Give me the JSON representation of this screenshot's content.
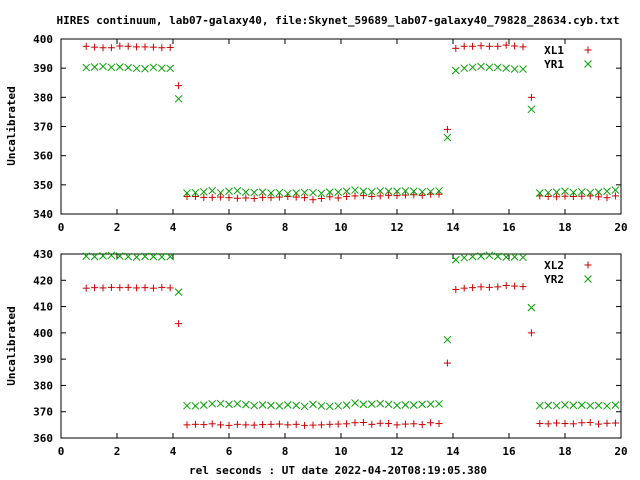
{
  "chart_data": {
    "title": "HIRES continuum, lab07-galaxy40, file:Skynet_59689_lab07-galaxy40_79828_28634.cyb.txt",
    "xlabel": "rel seconds : UT date 2022-04-20T08:19:05.380",
    "colors": {
      "plus": "#cc0000",
      "cross": "#00a000"
    },
    "panels": [
      {
        "type": "scatter",
        "ylabel": "Uncalibrated",
        "xlim": [
          0,
          20
        ],
        "ylim": [
          340,
          400
        ],
        "xticks": [
          "0",
          "2",
          "4",
          "6",
          "8",
          "10",
          "12",
          "14",
          "16",
          "18",
          "20"
        ],
        "yticks": [
          "340",
          "350",
          "360",
          "370",
          "380",
          "390",
          "400"
        ],
        "legend": "top-right",
        "series": [
          {
            "name": "XL1",
            "marker": "plus",
            "x": [
              0.9,
              1.2,
              1.5,
              1.8,
              2.1,
              2.4,
              2.7,
              3.0,
              3.3,
              3.6,
              3.9,
              4.2,
              4.5,
              4.8,
              5.1,
              5.4,
              5.7,
              6.0,
              6.3,
              6.6,
              6.9,
              7.2,
              7.5,
              7.8,
              8.1,
              8.4,
              8.7,
              9.0,
              9.3,
              9.6,
              9.9,
              10.2,
              10.5,
              10.8,
              11.1,
              11.4,
              11.7,
              12.0,
              12.3,
              12.6,
              12.9,
              13.2,
              13.5,
              13.8,
              14.1,
              14.4,
              14.7,
              15.0,
              15.3,
              15.6,
              15.9,
              16.2,
              16.5,
              16.8,
              17.1,
              17.4,
              17.7,
              18.0,
              18.3,
              18.6,
              18.9,
              19.2,
              19.5,
              19.8
            ],
            "y": [
              397.5,
              397.2,
              397.0,
              397.0,
              397.6,
              397.5,
              397.3,
              397.3,
              397.2,
              397.0,
              397.1,
              384.0,
              346.0,
              346.0,
              345.7,
              345.7,
              345.8,
              345.6,
              345.4,
              345.5,
              345.3,
              345.7,
              345.6,
              345.8,
              346.0,
              345.8,
              345.6,
              344.9,
              345.3,
              345.9,
              345.5,
              346.0,
              346.2,
              346.3,
              346.0,
              346.2,
              346.4,
              346.3,
              346.5,
              346.6,
              346.4,
              346.8,
              346.8,
              369.0,
              396.8,
              397.5,
              397.5,
              397.7,
              397.5,
              397.5,
              397.9,
              397.6,
              397.3,
              380.0,
              346.2,
              346.0,
              345.9,
              346.1,
              346.0,
              346.1,
              346.2,
              345.9,
              345.6,
              346.2
            ]
          },
          {
            "name": "YR1",
            "marker": "cross",
            "x": [
              0.9,
              1.2,
              1.5,
              1.8,
              2.1,
              2.4,
              2.7,
              3.0,
              3.3,
              3.6,
              3.9,
              4.2,
              4.5,
              4.8,
              5.1,
              5.4,
              5.7,
              6.0,
              6.3,
              6.6,
              6.9,
              7.2,
              7.5,
              7.8,
              8.1,
              8.4,
              8.7,
              9.0,
              9.3,
              9.6,
              9.9,
              10.2,
              10.5,
              10.8,
              11.1,
              11.4,
              11.7,
              12.0,
              12.3,
              12.6,
              12.9,
              13.2,
              13.5,
              13.8,
              14.1,
              14.4,
              14.7,
              15.0,
              15.3,
              15.6,
              15.9,
              16.2,
              16.5,
              16.8,
              17.1,
              17.4,
              17.7,
              18.0,
              18.3,
              18.6,
              18.9,
              19.2,
              19.5,
              19.8
            ],
            "y": [
              390.2,
              390.4,
              390.6,
              390.3,
              390.4,
              390.2,
              389.9,
              389.8,
              390.3,
              390.0,
              389.9,
              379.5,
              347.2,
              347.3,
              347.6,
              348.0,
              347.3,
              347.8,
              348.0,
              347.5,
              347.4,
              347.5,
              347.2,
              347.3,
              347.0,
              347.2,
              347.4,
              347.3,
              347.1,
              347.5,
              347.5,
              347.8,
              348.2,
              347.8,
              347.6,
              347.9,
              347.8,
              347.8,
              347.9,
              347.8,
              347.6,
              347.7,
              347.9,
              366.2,
              389.2,
              390.0,
              390.3,
              390.6,
              390.3,
              390.3,
              390.0,
              389.7,
              389.7,
              375.9,
              347.2,
              347.3,
              347.5,
              347.8,
              347.4,
              347.6,
              347.3,
              347.5,
              347.8,
              348.2
            ]
          }
        ]
      },
      {
        "type": "scatter",
        "ylabel": "Uncalibrated",
        "xlim": [
          0,
          20
        ],
        "ylim": [
          360,
          430
        ],
        "xticks": [
          "0",
          "2",
          "4",
          "6",
          "8",
          "10",
          "12",
          "14",
          "16",
          "18",
          "20"
        ],
        "yticks": [
          "360",
          "370",
          "380",
          "390",
          "400",
          "410",
          "420",
          "430"
        ],
        "legend": "top-right",
        "series": [
          {
            "name": "XL2",
            "marker": "plus",
            "x": [
              0.9,
              1.2,
              1.5,
              1.8,
              2.1,
              2.4,
              2.7,
              3.0,
              3.3,
              3.6,
              3.9,
              4.2,
              4.5,
              4.8,
              5.1,
              5.4,
              5.7,
              6.0,
              6.3,
              6.6,
              6.9,
              7.2,
              7.5,
              7.8,
              8.1,
              8.4,
              8.7,
              9.0,
              9.3,
              9.6,
              9.9,
              10.2,
              10.5,
              10.8,
              11.1,
              11.4,
              11.7,
              12.0,
              12.3,
              12.6,
              12.9,
              13.2,
              13.5,
              13.8,
              14.1,
              14.4,
              14.7,
              15.0,
              15.3,
              15.6,
              15.9,
              16.2,
              16.5,
              16.8,
              17.1,
              17.4,
              17.7,
              18.0,
              18.3,
              18.6,
              18.9,
              19.2,
              19.5,
              19.8
            ],
            "y": [
              417.0,
              417.2,
              417.1,
              417.3,
              417.2,
              417.3,
              417.1,
              417.2,
              417.0,
              417.3,
              417.1,
              403.5,
              365.0,
              365.2,
              365.1,
              365.4,
              365.0,
              364.8,
              365.2,
              365.0,
              364.9,
              365.1,
              365.2,
              365.3,
              365.0,
              365.2,
              364.8,
              364.9,
              365.0,
              365.2,
              365.3,
              365.4,
              365.8,
              365.9,
              365.2,
              365.6,
              365.5,
              365.0,
              365.3,
              365.4,
              365.1,
              365.8,
              365.5,
              388.5,
              416.5,
              417.0,
              417.2,
              417.5,
              417.3,
              417.5,
              418.0,
              417.8,
              417.6,
              400.0,
              365.5,
              365.4,
              365.7,
              365.5,
              365.4,
              365.8,
              365.9,
              365.3,
              365.6,
              365.7
            ]
          },
          {
            "name": "YR2",
            "marker": "cross",
            "x": [
              0.9,
              1.2,
              1.5,
              1.8,
              2.1,
              2.4,
              2.7,
              3.0,
              3.3,
              3.6,
              3.9,
              4.2,
              4.5,
              4.8,
              5.1,
              5.4,
              5.7,
              6.0,
              6.3,
              6.6,
              6.9,
              7.2,
              7.5,
              7.8,
              8.1,
              8.4,
              8.7,
              9.0,
              9.3,
              9.6,
              9.9,
              10.2,
              10.5,
              10.8,
              11.1,
              11.4,
              11.7,
              12.0,
              12.3,
              12.6,
              12.9,
              13.2,
              13.5,
              13.8,
              14.1,
              14.4,
              14.7,
              15.0,
              15.3,
              15.6,
              15.9,
              16.2,
              16.5,
              16.8,
              17.1,
              17.4,
              17.7,
              18.0,
              18.3,
              18.6,
              18.9,
              19.2,
              19.5,
              19.8
            ],
            "y": [
              429.2,
              429.0,
              429.3,
              429.5,
              429.2,
              429.0,
              428.8,
              429.1,
              429.0,
              428.9,
              429.0,
              415.5,
              372.3,
              372.2,
              372.5,
              373.0,
              373.1,
              372.8,
              373.0,
              372.7,
              372.3,
              372.6,
              372.4,
              372.2,
              372.6,
              372.4,
              372.0,
              372.8,
              372.2,
              372.0,
              372.2,
              372.5,
              373.3,
              372.8,
              372.9,
              373.1,
              372.8,
              372.4,
              372.6,
              372.5,
              372.8,
              372.9,
              373.0,
              397.4,
              427.8,
              428.6,
              429.0,
              429.2,
              429.5,
              429.1,
              428.8,
              428.9,
              428.7,
              409.6,
              372.3,
              372.4,
              372.3,
              372.6,
              372.4,
              372.5,
              372.3,
              372.4,
              372.2,
              372.5
            ]
          }
        ]
      }
    ]
  }
}
